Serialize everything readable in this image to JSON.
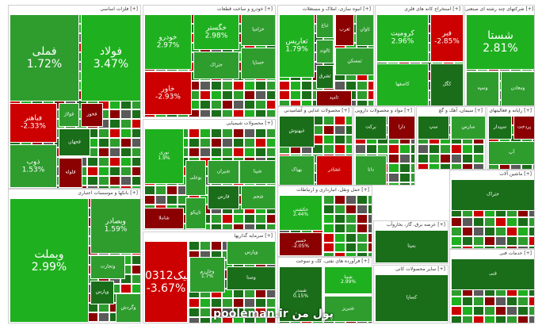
{
  "chart_data": {
    "type": "heatmap",
    "colors": {
      "up_strong": "#1fb01f",
      "up": "#2e9d2e",
      "up_dark": "#1a6e1a",
      "down": "#cc0000",
      "down_dark": "#8b0000",
      "neutral": "#5a5a5a"
    },
    "sectors": [
      {
        "title": "فلزات اساسی [+]",
        "tiles": [
          {
            "symbol": "فولاد",
            "change": "3.47%",
            "value": 3.47
          },
          {
            "symbol": "فملی",
            "change": "1.72%",
            "value": 1.72
          },
          {
            "symbol": "فباهنر",
            "change": "-2.33%",
            "value": -2.33
          },
          {
            "symbol": "ذوب",
            "change": "1.53%",
            "value": 1.53
          },
          {
            "symbol": "فولاژ",
            "change": "",
            "value": 1.0
          },
          {
            "symbol": "فخوز",
            "change": "",
            "value": -1.5
          },
          {
            "symbol": "فجهان",
            "change": "",
            "value": 1.2
          },
          {
            "symbol": "فلوله",
            "change": "",
            "value": -1.2
          }
        ]
      },
      {
        "title": "خودرو و ساخت قطعات [+]",
        "tiles": [
          {
            "symbol": "خودرو",
            "change": "2.97%",
            "value": 2.97
          },
          {
            "symbol": "خگستر",
            "change": "2.98%",
            "value": 2.98
          },
          {
            "symbol": "خاور",
            "change": "-2.93%",
            "value": -2.93
          },
          {
            "symbol": "خزامیا",
            "change": "",
            "value": 1.5
          },
          {
            "symbol": "خساپا",
            "change": "",
            "value": 1.0
          },
          {
            "symbol": "ختراک",
            "change": "",
            "value": 0.8
          }
        ]
      },
      {
        "title": "انبوه سازی، املاک و مستغلات [+]",
        "tiles": [
          {
            "symbol": "ثعاریس",
            "change": "1.79%",
            "value": 1.79
          },
          {
            "symbol": "ثباغ",
            "change": "",
            "value": 1.2
          },
          {
            "symbol": "ثالوند",
            "change": "",
            "value": 1.3
          },
          {
            "symbol": "ثغرب",
            "change": "",
            "value": -2.0
          },
          {
            "symbol": "ثاوان",
            "change": "",
            "value": 1.0
          },
          {
            "symbol": "ثمسکن",
            "change": "",
            "value": 0.9
          },
          {
            "symbol": "ثشرق",
            "change": "",
            "value": 1.0
          },
          {
            "symbol": "ثامید",
            "change": "",
            "value": -1.8
          }
        ]
      },
      {
        "title": "استخراج کانه های فلزی [+]",
        "tiles": [
          {
            "symbol": "کروميت",
            "change": "2.96%",
            "value": 2.96
          },
          {
            "symbol": "فبر",
            "change": "-2.85%",
            "value": -2.85
          },
          {
            "symbol": "کاصفها",
            "change": "",
            "value": 1.6
          },
          {
            "symbol": "کگل",
            "change": "",
            "value": 1.0
          }
        ]
      },
      {
        "title": "شرکتهای چند رشته ای صنعتی [+]",
        "tiles": [
          {
            "symbol": "شستا",
            "change": "2.81%",
            "value": 2.81
          },
          {
            "symbol": "وسپه",
            "change": "",
            "value": 1.0
          },
          {
            "symbol": "ومعادن",
            "change": "",
            "value": 1.2
          }
        ]
      },
      {
        "title": "محصولات شیمیایی [+]",
        "tiles": [
          {
            "symbol": "نوری",
            "change": "1.9%",
            "value": 1.9
          },
          {
            "symbol": "شیران",
            "change": "",
            "value": 1.5
          },
          {
            "symbol": "شپنا",
            "change": "",
            "value": 1.3
          },
          {
            "symbol": "شاملا",
            "change": "",
            "value": -1.8
          },
          {
            "symbol": "بوعلی",
            "change": "",
            "value": 1.0
          },
          {
            "symbol": "تاپیکو",
            "change": "",
            "value": 1.2
          },
          {
            "symbol": "فارس",
            "change": "",
            "value": 1.4
          },
          {
            "symbol": "شجم",
            "change": "",
            "value": 1.1
          }
        ]
      },
      {
        "title": "بانکها و موسسات اعتباری [+]",
        "tiles": [
          {
            "symbol": "وبملت",
            "change": "2.99%",
            "value": 2.99
          },
          {
            "symbol": "وبصادر",
            "change": "1.59%",
            "value": 1.59
          },
          {
            "symbol": "وتجارت",
            "change": "",
            "value": 1.4
          },
          {
            "symbol": "وپارس",
            "change": "",
            "value": 1.2
          },
          {
            "symbol": "وگردش",
            "change": "",
            "value": 1.0
          }
        ]
      },
      {
        "title": "سرمایه گذاریها [+]",
        "tiles": [
          {
            "symbol": "0312سیک",
            "change": "-3.67%",
            "value": -3.67
          },
          {
            "symbol": "وخارزم",
            "change": "1.7%",
            "value": 1.7
          },
          {
            "symbol": "وپارس",
            "change": "",
            "value": 1.1
          },
          {
            "symbol": "وصنا",
            "change": "",
            "value": 1.3
          }
        ]
      },
      {
        "title": "محصولات غذایی و آشامیدنی [+]",
        "tiles": [
          {
            "symbol": "غبهنوش",
            "change": "",
            "value": 1.2
          },
          {
            "symbol": "بهپاک",
            "change": "",
            "value": 1.3
          },
          {
            "symbol": "غشاذر",
            "change": "",
            "value": -1.0
          }
        ]
      },
      {
        "title": "مواد و محصولات دارویی [+]",
        "tiles": [
          {
            "symbol": "برکت",
            "change": "",
            "value": 1.3
          },
          {
            "symbol": "دارا",
            "change": "",
            "value": -1.2
          },
          {
            "symbol": "دانا",
            "change": "",
            "value": 1.1
          }
        ]
      },
      {
        "title": "سیمان، آهک و گچ [+]",
        "tiles": [
          {
            "symbol": "سپ",
            "change": "",
            "value": 1.2
          },
          {
            "symbol": "سارس",
            "change": "",
            "value": 1.0
          }
        ]
      },
      {
        "title": "رایانه و فعالیتهای [+]",
        "tiles": [
          {
            "symbol": "سپیدار",
            "change": "",
            "value": 1.3
          },
          {
            "symbol": "پردخت",
            "change": "",
            "value": -1.5
          },
          {
            "symbol": "آپ",
            "change": "",
            "value": 1.1
          }
        ]
      },
      {
        "title": "حمل ونقل، انبارداری و ارتباطات [+]",
        "tiles": [
          {
            "symbol": "حکشتی",
            "change": "2.44%",
            "value": 2.44
          },
          {
            "symbol": "حسیر",
            "change": "-2.05%",
            "value": -2.05
          }
        ]
      },
      {
        "title": "عرضه برق، گاز، بخاروآب [+]",
        "tiles": [
          {
            "symbol": "بمپنا",
            "change": "",
            "value": 1.2
          }
        ]
      },
      {
        "title": "فرآورده های نفتی، کک و سوخت [+]",
        "tiles": [
          {
            "symbol": "شبندر",
            "change": "0.15%",
            "value": 0.15
          },
          {
            "symbol": "شپنا",
            "change": "2.99%",
            "value": 2.99
          },
          {
            "symbol": "شبریز",
            "change": "",
            "value": 1.0
          }
        ]
      },
      {
        "title": "سایر محصولات کانی [+]",
        "tiles": [
          {
            "symbol": "کساپا",
            "change": "",
            "value": 1.2
          }
        ]
      },
      {
        "title": "ماشین آلات [+]",
        "tiles": [
          {
            "symbol": "ختراک",
            "change": "",
            "value": 1.1
          }
        ]
      },
      {
        "title": "خدمات فنی [+]",
        "tiles": [
          {
            "symbol": "فنی",
            "change": "",
            "value": 1.0
          }
        ]
      }
    ],
    "watermark": "pooleman.ir پول من"
  }
}
